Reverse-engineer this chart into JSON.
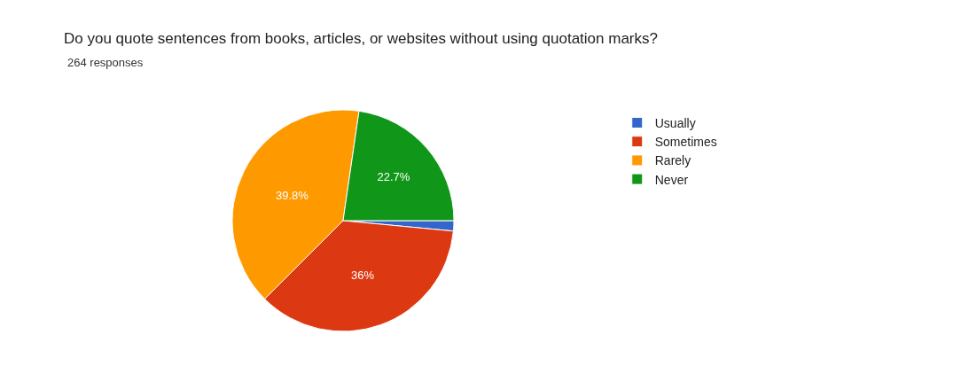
{
  "chart_data": {
    "type": "pie",
    "title": "Do you quote sentences from books, articles, or websites without using quotation marks?",
    "subtitle": "264 responses",
    "categories": [
      "Usually",
      "Sometimes",
      "Rarely",
      "Never"
    ],
    "values": [
      1.5,
      36,
      39.8,
      22.7
    ],
    "value_labels": [
      null,
      "36%",
      "39.8%",
      "22.7%"
    ],
    "colors": [
      "#3366cc",
      "#dc3912",
      "#ff9900",
      "#109618"
    ],
    "legend": "right"
  }
}
